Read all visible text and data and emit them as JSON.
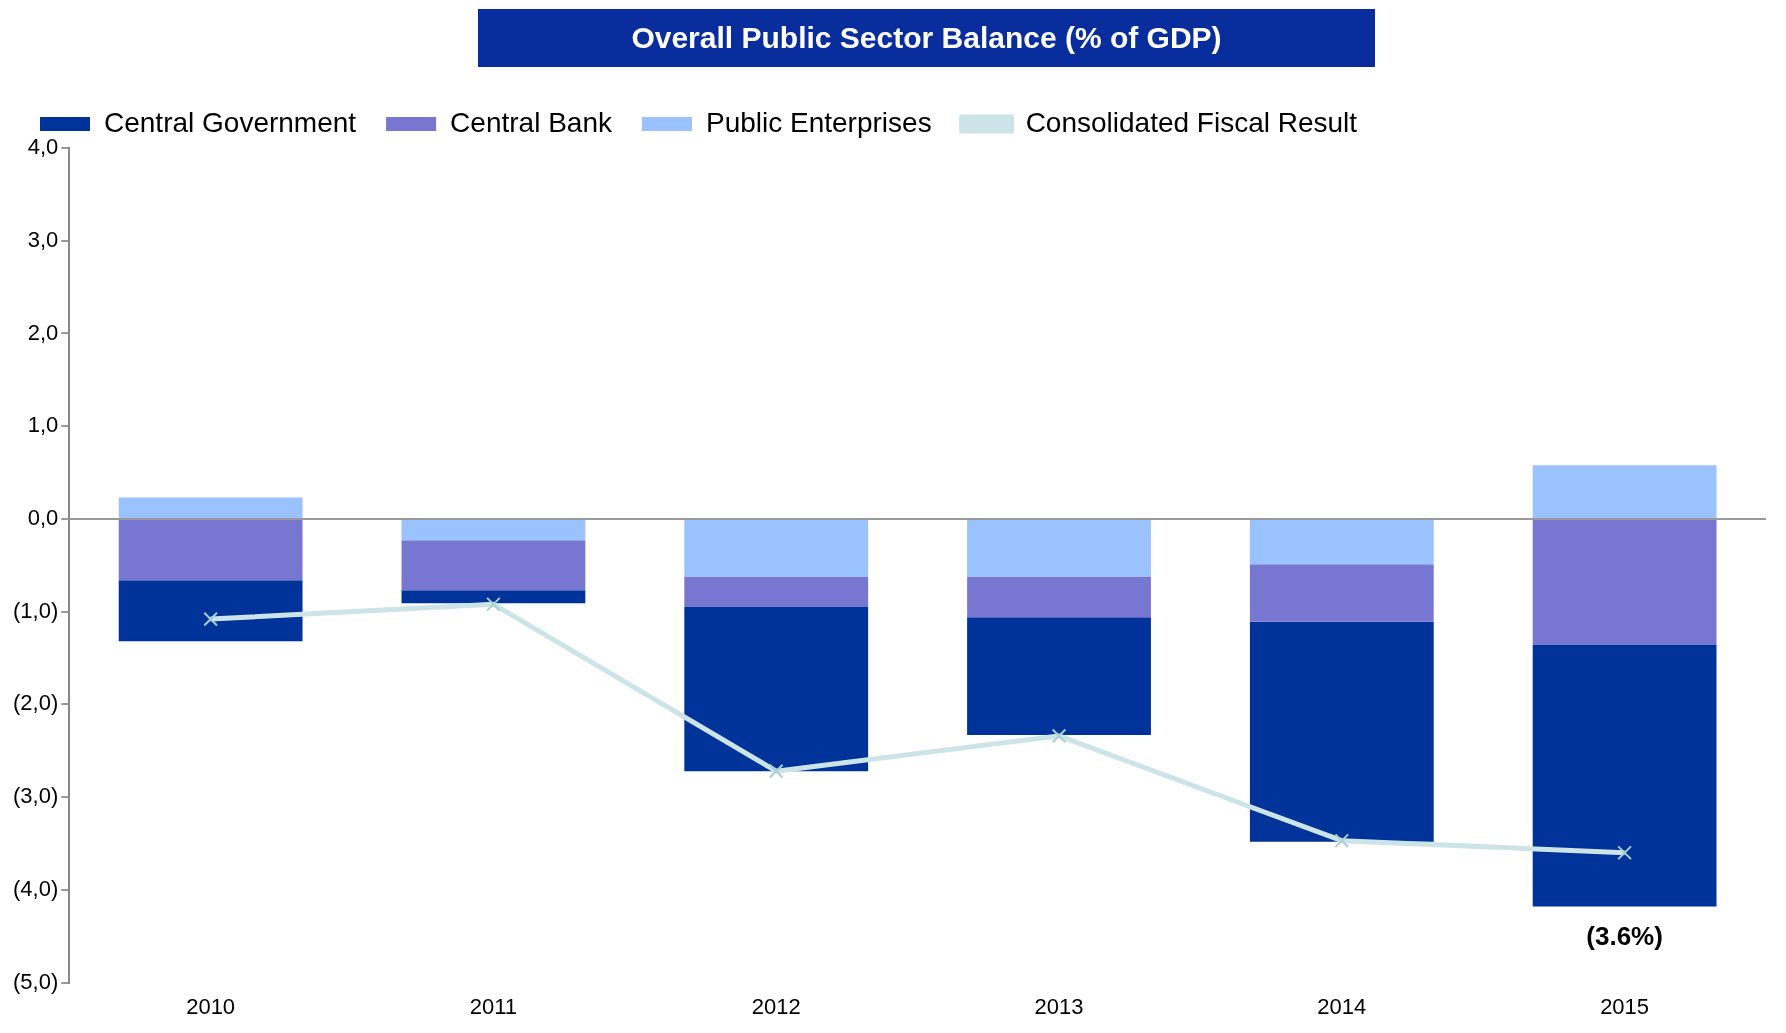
{
  "chart_data": {
    "type": "bar",
    "title": "Overall Public Sector Balance (% of GDP)",
    "categories": [
      "2010",
      "2011",
      "2012",
      "2013",
      "2014",
      "2015"
    ],
    "stacked": true,
    "series": [
      {
        "name": "Public Enterprises",
        "color": "#99c2ff",
        "values": [
          0.23,
          -0.23,
          -0.62,
          -0.62,
          -0.49,
          0.58
        ]
      },
      {
        "name": "Central Bank",
        "color": "#7777d1",
        "values": [
          -0.66,
          -0.54,
          -0.33,
          -0.44,
          -0.62,
          -1.36
        ]
      },
      {
        "name": "Central Government",
        "color": "#003399",
        "values": [
          -0.66,
          -0.14,
          -1.77,
          -1.27,
          -2.37,
          -2.82
        ]
      },
      {
        "name": "Consolidated Fiscal Result",
        "type": "line",
        "color": "#cce4e8",
        "marker": "cross",
        "values": [
          -1.08,
          -0.92,
          -2.72,
          -2.34,
          -3.47,
          -3.6
        ],
        "value_labels": [
          null,
          null,
          null,
          null,
          null,
          "(3.6%)"
        ]
      }
    ],
    "ylim": [
      -5,
      4
    ],
    "yticks": [
      {
        "value": -5,
        "label": "(5,0)"
      },
      {
        "value": -4,
        "label": "(4,0)"
      },
      {
        "value": -3,
        "label": "(3,0)"
      },
      {
        "value": -2,
        "label": "(2,0)"
      },
      {
        "value": -1,
        "label": "(1,0)"
      },
      {
        "value": 0,
        "label": "0,0"
      },
      {
        "value": 1,
        "label": "1,0"
      },
      {
        "value": 2,
        "label": "2,0"
      },
      {
        "value": 3,
        "label": "3,0"
      },
      {
        "value": 4,
        "label": "4,0"
      }
    ],
    "ref_lines": [
      {
        "axis": "y",
        "value": 0,
        "color": "#999999"
      }
    ],
    "grid": false,
    "legend": "top left"
  }
}
